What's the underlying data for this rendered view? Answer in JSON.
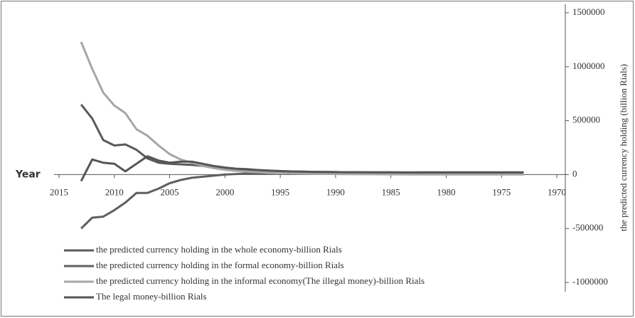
{
  "chart_data": {
    "type": "line",
    "xlabel": "Year",
    "ylabel": "the predicted currency holding (billion Rials)",
    "x": [
      2013,
      2012,
      2011,
      2010,
      2009,
      2008,
      2007,
      2006,
      2005,
      2004,
      2003,
      2002,
      2001,
      2000,
      1999,
      1998,
      1997,
      1996,
      1995,
      1994,
      1993,
      1992,
      1991,
      1990,
      1989,
      1988,
      1987,
      1986,
      1985,
      1984,
      1983,
      1982,
      1981,
      1980,
      1979,
      1978,
      1977,
      1976,
      1975,
      1974,
      1973
    ],
    "xlim": [
      2015,
      1970
    ],
    "xticks": [
      2015,
      2010,
      2005,
      2000,
      1995,
      1990,
      1985,
      1980,
      1975,
      1970
    ],
    "ylim": [
      -1000000,
      1500000
    ],
    "yticks": [
      -1000000,
      -500000,
      0,
      500000,
      1000000,
      1500000
    ],
    "y_axis_side": "right",
    "legend": "bottom-left",
    "series": [
      {
        "name": "the predicted currency holding in the whole economy-billion Rials",
        "color": "#5a5a5a",
        "values": [
          650000,
          520000,
          320000,
          270000,
          280000,
          230000,
          150000,
          110000,
          100000,
          95000,
          90000,
          80000,
          70000,
          60000,
          52000,
          45000,
          40000,
          36000,
          32000,
          29000,
          27000,
          25000,
          24000,
          23000,
          22000,
          22000,
          21000,
          21000,
          21000,
          20000,
          20000,
          20000,
          20000,
          20000,
          20000,
          20000,
          20000,
          20000,
          20000,
          20000,
          20000
        ]
      },
      {
        "name": "the predicted currency holding in the formal economy-billion Rials",
        "color": "#5f5f5f",
        "values": [
          -500000,
          -400000,
          -390000,
          -330000,
          -260000,
          -170000,
          -170000,
          -130000,
          -80000,
          -50000,
          -30000,
          -20000,
          -10000,
          0,
          5000,
          10000,
          12000,
          14000,
          15000,
          16000,
          17000,
          18000,
          18000,
          18000,
          18000,
          18000,
          19000,
          19000,
          19000,
          19000,
          19000,
          20000,
          20000,
          20000,
          20000,
          20000,
          20000,
          20000,
          20000,
          20000,
          20000
        ]
      },
      {
        "name": "the predicted currency holding in the informal economy(The illegal money)-billion Rials",
        "color": "#a6a6a6",
        "values": [
          1230000,
          980000,
          760000,
          640000,
          570000,
          420000,
          360000,
          270000,
          190000,
          140000,
          110000,
          80000,
          60000,
          45000,
          35000,
          28000,
          22000,
          18000,
          15000,
          12000,
          10000,
          8000,
          6000,
          5000,
          4000,
          3500,
          3000,
          2500,
          2000,
          1800,
          1600,
          1400,
          1200,
          1000,
          900,
          800,
          700,
          600,
          500,
          400,
          300
        ]
      },
      {
        "name": "The legal money-billion Rials",
        "color": "#555555",
        "values": [
          -60000,
          140000,
          110000,
          100000,
          30000,
          100000,
          170000,
          130000,
          110000,
          120000,
          120000,
          100000,
          80000,
          65000,
          55000,
          50000,
          42000,
          36000,
          32000,
          29000,
          27000,
          25000,
          24000,
          23000,
          22000,
          22000,
          21000,
          21000,
          21000,
          20000,
          20000,
          20000,
          20000,
          20000,
          20000,
          20000,
          20000,
          20000,
          20000,
          20000,
          20000
        ]
      }
    ]
  }
}
